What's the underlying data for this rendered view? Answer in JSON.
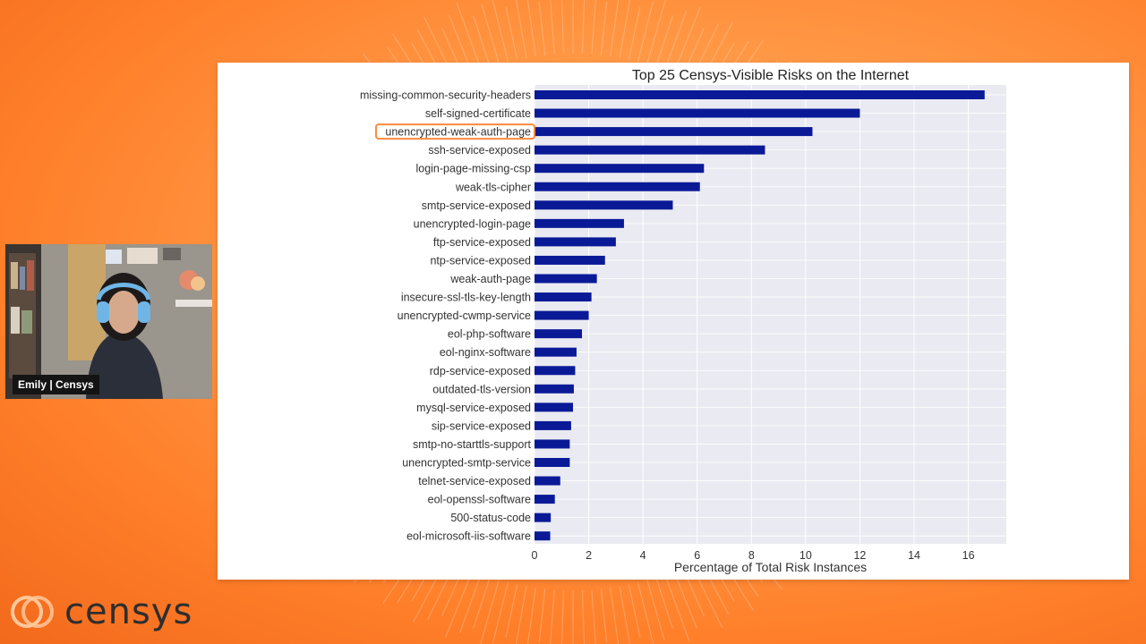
{
  "presenter": {
    "name_label": "Emily | Censys"
  },
  "brand": {
    "logo_text": "censys",
    "accent": "#ff8a3c",
    "bar_color": "#0a1a96"
  },
  "chart_data": {
    "type": "bar",
    "orientation": "horizontal",
    "title": "Top 25 Censys-Visible Risks on the Internet",
    "xlabel": "Percentage of Total Risk Instances",
    "ylabel": "",
    "xlim": [
      0,
      17.4
    ],
    "xticks": [
      0,
      2,
      4,
      6,
      8,
      10,
      12,
      14,
      16
    ],
    "grid": true,
    "highlighted_category": "unencrypted-weak-auth-page",
    "categories": [
      "missing-common-security-headers",
      "self-signed-certificate",
      "unencrypted-weak-auth-page",
      "ssh-service-exposed",
      "login-page-missing-csp",
      "weak-tls-cipher",
      "smtp-service-exposed",
      "unencrypted-login-page",
      "ftp-service-exposed",
      "ntp-service-exposed",
      "weak-auth-page",
      "insecure-ssl-tls-key-length",
      "unencrypted-cwmp-service",
      "eol-php-software",
      "eol-nginx-software",
      "rdp-service-exposed",
      "outdated-tls-version",
      "mysql-service-exposed",
      "sip-service-exposed",
      "smtp-no-starttls-support",
      "unencrypted-smtp-service",
      "telnet-service-exposed",
      "eol-openssl-software",
      "500-status-code",
      "eol-microsoft-iis-software"
    ],
    "values": [
      16.6,
      12.0,
      10.25,
      8.5,
      6.25,
      6.1,
      5.1,
      3.3,
      3.0,
      2.6,
      2.3,
      2.1,
      2.0,
      1.75,
      1.55,
      1.5,
      1.45,
      1.42,
      1.35,
      1.3,
      1.3,
      0.95,
      0.75,
      0.6,
      0.58
    ]
  }
}
